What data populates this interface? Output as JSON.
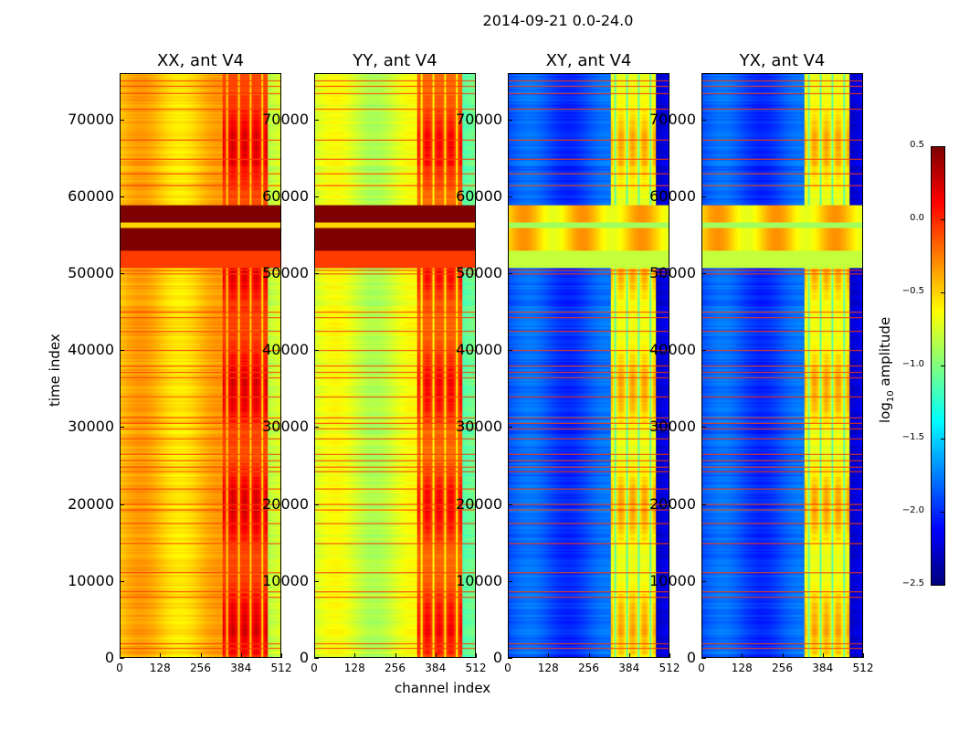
{
  "suptitle": "2014-09-21 0.0-24.0",
  "chart_data": {
    "type": "heatmap",
    "panels": [
      {
        "title": "XX, ant V4",
        "base": -0.45,
        "band": -0.1,
        "dark_band": true
      },
      {
        "title": "YY, ant V4",
        "base": -0.75,
        "band": -0.2,
        "dark_band": true
      },
      {
        "title": "XY, ant V4",
        "base": -1.9,
        "band": -0.7,
        "dark_band": false
      },
      {
        "title": "YX, ant V4",
        "base": -1.9,
        "band": -0.7,
        "dark_band": false
      }
    ],
    "xlabel": "channel index",
    "ylabel": "time index",
    "xlim": [
      0,
      512
    ],
    "ylim": [
      0,
      76000
    ],
    "xticks": [
      "0",
      "128",
      "256",
      "384",
      "512"
    ],
    "yticks": [
      "0",
      "10000",
      "20000",
      "30000",
      "40000",
      "50000",
      "60000",
      "70000"
    ],
    "flagged_rows": [
      1200,
      1800,
      7800,
      8600,
      11000,
      14800,
      17500,
      19200,
      20000,
      22000,
      24200,
      24800,
      25600,
      26500,
      28500,
      29800,
      30500,
      31200,
      34000,
      36500,
      37200,
      38000,
      40000,
      42500,
      44300,
      45000,
      50000,
      50500,
      61500,
      63000,
      65000,
      67500,
      71500,
      73500,
      74500,
      75200
    ],
    "strong_band_range": [
      53000,
      59000
    ],
    "colorbar": {
      "label": "log10 amplitude",
      "label_base": "log",
      "label_sub": "10",
      "label_rest": " amplitude",
      "range": [
        -2.5,
        0.5
      ],
      "ticks": [
        "0.5",
        "0.0",
        "−0.5",
        "−1.0",
        "−1.5",
        "−2.0",
        "−2.5"
      ],
      "colormap": "jet"
    }
  }
}
